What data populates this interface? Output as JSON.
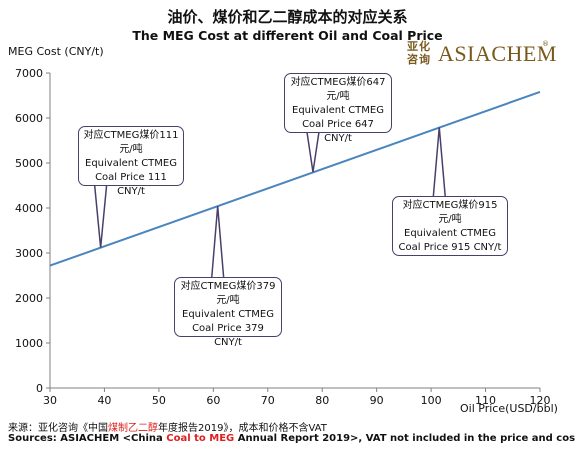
{
  "title_cn": "油价、煤价和乙二醇成本的对应关系",
  "title_en": "The MEG Cost at different Oil and Coal Price",
  "logo": {
    "mark_line1": "亚化",
    "mark_line2": "咨询",
    "name": "ASIACHEM",
    "reg": "®"
  },
  "colors": {
    "line": "#4a86be",
    "callout_border": "#4a3f6b",
    "highlight": "#e02020"
  },
  "chart_data": {
    "type": "line",
    "title": "The MEG Cost at different Oil and Coal Price",
    "xlabel": "Oil Price(USD/bbl)",
    "ylabel": "MEG Cost (CNY/t)",
    "xlim": [
      30,
      120
    ],
    "ylim": [
      0,
      7000
    ],
    "xticks": [
      "30",
      "40",
      "50",
      "60",
      "70",
      "80",
      "90",
      "100",
      "110",
      "120"
    ],
    "yticks": [
      "0",
      "1000",
      "2000",
      "3000",
      "4000",
      "5000",
      "6000",
      "7000"
    ],
    "grid": false,
    "series": [
      {
        "x": [
          30,
          120
        ],
        "y": [
          2720,
          6580
        ]
      }
    ],
    "annotations": [
      {
        "x": 39.3,
        "y": 3120,
        "line1": "对应CTMEG煤价111",
        "line2": "元/吨",
        "line3": "Equivalent CTMEG",
        "line4": "Coal Price 111 CNY/t"
      },
      {
        "x": 60.8,
        "y": 4040,
        "line1": "对应CTMEG煤价379",
        "line2": "元/吨",
        "line3": "Equivalent CTMEG",
        "line4": "Coal Price 379 CNY/t"
      },
      {
        "x": 78.3,
        "y": 4800,
        "line1": "对应CTMEG煤价647",
        "line2": "元/吨",
        "line3": "Equivalent CTMEG",
        "line4": "Coal Price 647 CNY/t"
      },
      {
        "x": 101.5,
        "y": 5790,
        "line1": "对应CTMEG煤价915",
        "line2": "元/吨",
        "line3": "Equivalent CTMEG",
        "line4": "Coal Price 915 CNY/t"
      }
    ]
  },
  "note_cn": {
    "prefix": "来源：亚化咨询《中国",
    "highlight": "煤制乙二醇",
    "suffix": "年度报告2019》，成本和价格不含VAT"
  },
  "note_en": {
    "prefix": "Sources: ASIACHEM <China ",
    "highlight": "Coal to MEG",
    "suffix": " Annual Report 2019>, VAT not included in the price and cost"
  }
}
